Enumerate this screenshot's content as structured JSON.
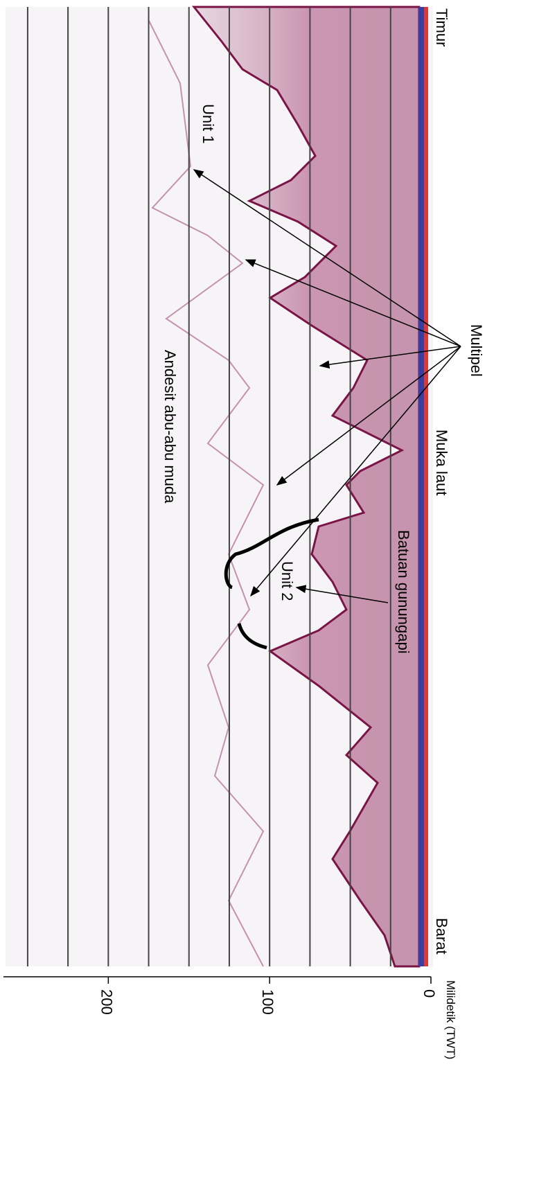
{
  "figure": {
    "labels": {
      "east": "Timur",
      "west": "Barat",
      "multiple": "Multipel",
      "sea_level": "Muka laut",
      "volcanic_rock": "Batuan gunungapi",
      "unit1": "Unit 1",
      "unit2": "Unit 2",
      "andesite": "Andesit abu-abu muda"
    },
    "axis": {
      "label": "Milidetik (TWT)",
      "range": [
        0,
        265
      ],
      "ticks": [
        0,
        100,
        200
      ],
      "grid_lines": [
        25,
        50,
        75,
        100,
        125,
        150,
        175,
        200,
        225,
        250
      ]
    }
  }
}
